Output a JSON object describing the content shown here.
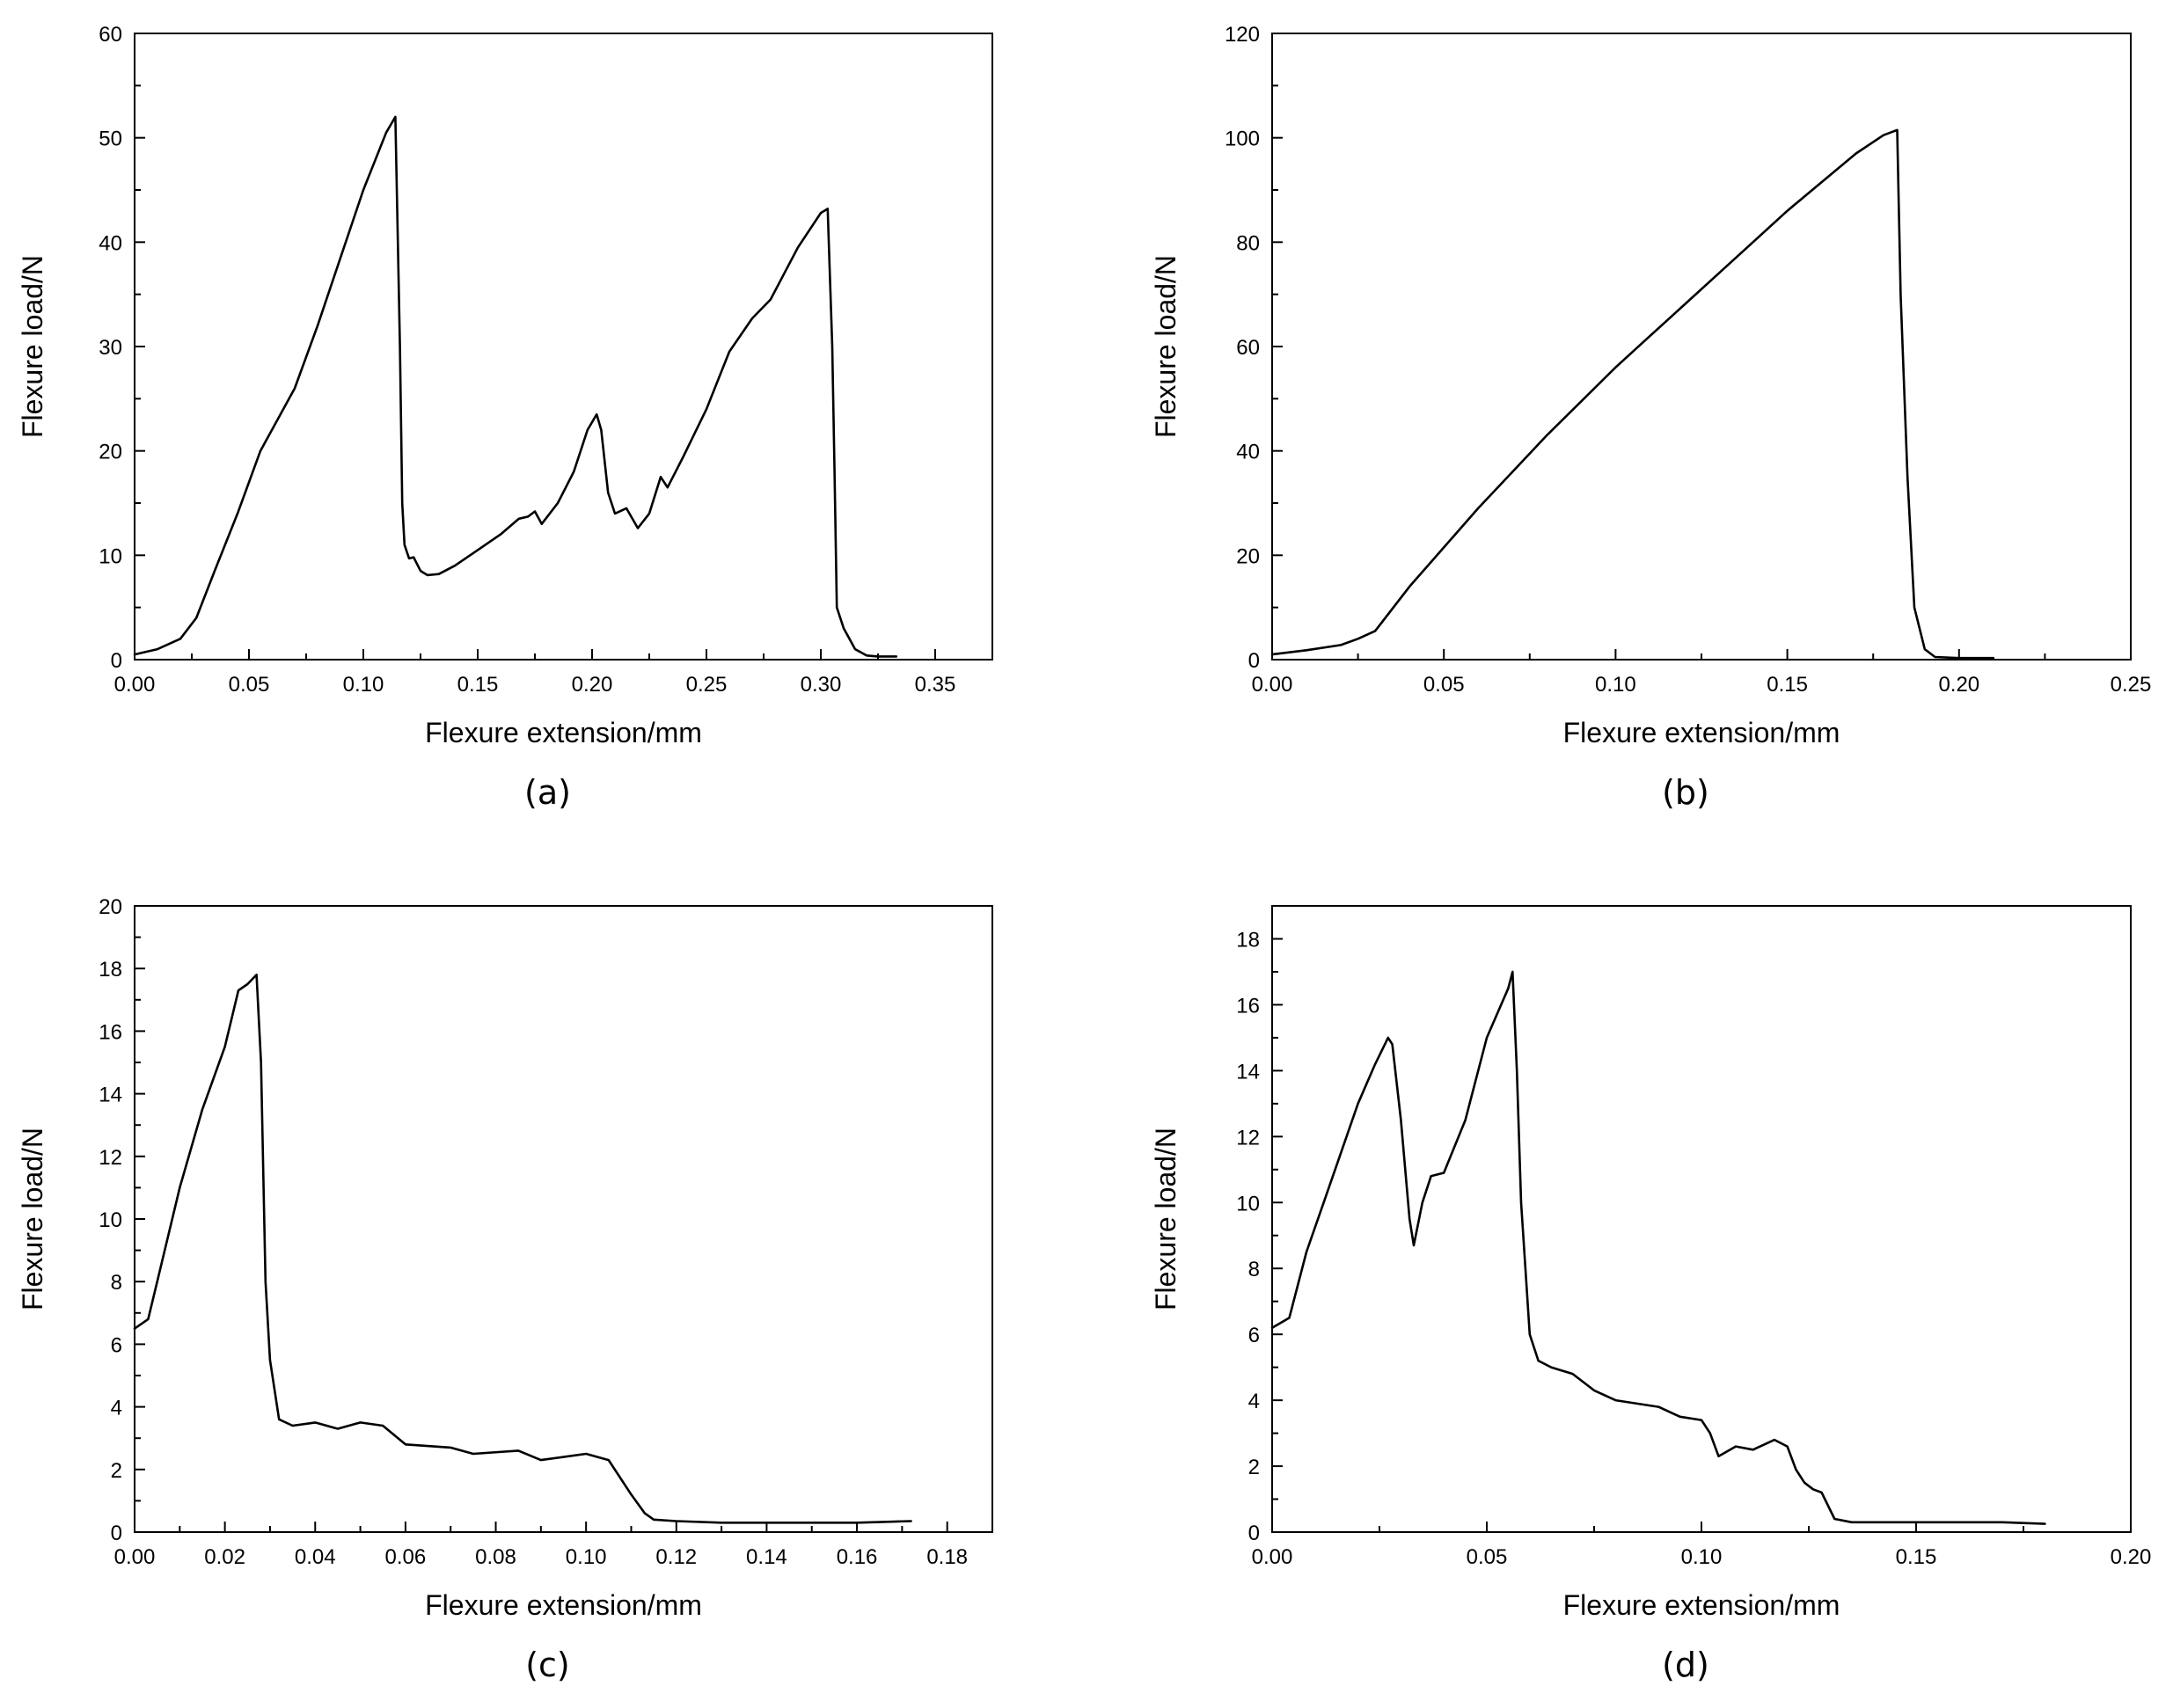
{
  "chart_data": [
    {
      "type": "line",
      "panel_label": "(a)",
      "xlabel": "Flexure extension/mm",
      "ylabel": "Flexure load/N",
      "xlim": [
        0,
        0.375
      ],
      "ylim": [
        0,
        60
      ],
      "x_ticks": [
        0,
        0.05,
        0.1,
        0.15,
        0.2,
        0.25,
        0.3,
        0.35
      ],
      "x_tick_labels": [
        "0.00",
        "0.05",
        "0.10",
        "0.15",
        "0.20",
        "0.25",
        "0.30",
        "0.35"
      ],
      "y_ticks": [
        0,
        10,
        20,
        30,
        40,
        50,
        60
      ],
      "y_tick_labels": [
        "0",
        "10",
        "20",
        "30",
        "40",
        "50",
        "60"
      ],
      "grid": false,
      "series": [
        {
          "name": "load",
          "x": [
            0,
            0.01,
            0.02,
            0.027,
            0.035,
            0.045,
            0.055,
            0.065,
            0.07,
            0.08,
            0.09,
            0.1,
            0.11,
            0.114,
            0.116,
            0.117,
            0.118,
            0.12,
            0.122,
            0.125,
            0.128,
            0.133,
            0.14,
            0.15,
            0.16,
            0.168,
            0.172,
            0.175,
            0.178,
            0.185,
            0.192,
            0.198,
            0.202,
            0.204,
            0.207,
            0.21,
            0.215,
            0.22,
            0.225,
            0.23,
            0.233,
            0.24,
            0.25,
            0.26,
            0.27,
            0.278,
            0.29,
            0.3,
            0.303,
            0.305,
            0.306,
            0.307,
            0.31,
            0.315,
            0.32,
            0.325,
            0.33,
            0.333
          ],
          "y": [
            0.5,
            1.0,
            2.0,
            4.0,
            8.5,
            14.0,
            20.0,
            24.0,
            26.0,
            32.0,
            38.5,
            45.0,
            50.5,
            52.0,
            30.0,
            15.0,
            11.0,
            9.7,
            9.8,
            8.5,
            8.1,
            8.2,
            9.0,
            10.5,
            12.0,
            13.5,
            13.7,
            14.2,
            13.0,
            15.0,
            18.0,
            22.0,
            23.5,
            22.0,
            16.0,
            14.0,
            14.5,
            12.6,
            14.0,
            17.5,
            16.5,
            19.5,
            24.0,
            29.5,
            32.7,
            34.5,
            39.5,
            42.8,
            43.2,
            30.0,
            18.0,
            5.0,
            3.0,
            1.0,
            0.4,
            0.3,
            0.3,
            0.3
          ]
        }
      ]
    },
    {
      "type": "line",
      "panel_label": "(b)",
      "xlabel": "Flexure extension/mm",
      "ylabel": "Flexure load/N",
      "xlim": [
        0,
        0.25
      ],
      "ylim": [
        0,
        120
      ],
      "x_ticks": [
        0,
        0.05,
        0.1,
        0.15,
        0.2,
        0.25
      ],
      "x_tick_labels": [
        "0.00",
        "0.05",
        "0.10",
        "0.15",
        "0.20",
        "0.25"
      ],
      "y_ticks": [
        0,
        20,
        40,
        60,
        80,
        100,
        120
      ],
      "y_tick_labels": [
        "0",
        "20",
        "40",
        "60",
        "80",
        "100",
        "120"
      ],
      "grid": false,
      "series": [
        {
          "name": "load",
          "x": [
            0,
            0.01,
            0.02,
            0.025,
            0.03,
            0.04,
            0.05,
            0.06,
            0.07,
            0.08,
            0.09,
            0.1,
            0.11,
            0.12,
            0.13,
            0.14,
            0.15,
            0.16,
            0.17,
            0.178,
            0.182,
            0.183,
            0.185,
            0.187,
            0.19,
            0.193,
            0.2,
            0.21
          ],
          "y": [
            1.0,
            1.8,
            2.8,
            4.0,
            5.5,
            14.0,
            21.5,
            29.0,
            36.0,
            43.0,
            49.5,
            56.0,
            62.0,
            68.0,
            74.0,
            80.0,
            86.0,
            91.5,
            97.0,
            100.5,
            101.5,
            70.0,
            35.0,
            10.0,
            2.0,
            0.5,
            0.3,
            0.3
          ]
        }
      ]
    },
    {
      "type": "line",
      "panel_label": "(c)",
      "xlabel": "Flexure extension/mm",
      "ylabel": "Flexure load/N",
      "xlim": [
        0,
        0.19
      ],
      "ylim": [
        0,
        20
      ],
      "x_ticks": [
        0,
        0.02,
        0.04,
        0.06,
        0.08,
        0.1,
        0.12,
        0.14,
        0.16,
        0.18
      ],
      "x_tick_labels": [
        "0.00",
        "0.02",
        "0.04",
        "0.06",
        "0.08",
        "0.10",
        "0.12",
        "0.14",
        "0.16",
        "0.18"
      ],
      "y_ticks": [
        0,
        2,
        4,
        6,
        8,
        10,
        12,
        14,
        16,
        18,
        20
      ],
      "y_tick_labels": [
        "0",
        "2",
        "4",
        "6",
        "8",
        "10",
        "12",
        "14",
        "16",
        "18",
        "20"
      ],
      "grid": false,
      "series": [
        {
          "name": "load",
          "x": [
            0,
            0.003,
            0.005,
            0.01,
            0.015,
            0.02,
            0.023,
            0.025,
            0.027,
            0.028,
            0.029,
            0.03,
            0.032,
            0.035,
            0.04,
            0.045,
            0.05,
            0.055,
            0.06,
            0.07,
            0.075,
            0.085,
            0.09,
            0.095,
            0.1,
            0.105,
            0.11,
            0.113,
            0.115,
            0.12,
            0.13,
            0.14,
            0.15,
            0.16,
            0.172
          ],
          "y": [
            6.5,
            6.8,
            8.0,
            11.0,
            13.5,
            15.5,
            17.3,
            17.5,
            17.8,
            15.0,
            8.0,
            5.5,
            3.6,
            3.4,
            3.5,
            3.3,
            3.5,
            3.4,
            2.8,
            2.7,
            2.5,
            2.6,
            2.3,
            2.4,
            2.5,
            2.3,
            1.2,
            0.6,
            0.4,
            0.35,
            0.3,
            0.3,
            0.3,
            0.3,
            0.35
          ]
        }
      ]
    },
    {
      "type": "line",
      "panel_label": "(d)",
      "xlabel": "Flexure extension/mm",
      "ylabel": "Flexure load/N",
      "xlim": [
        0,
        0.2
      ],
      "ylim": [
        0,
        19
      ],
      "x_ticks": [
        0,
        0.05,
        0.1,
        0.15,
        0.2
      ],
      "x_tick_labels": [
        "0.00",
        "0.05",
        "0.10",
        "0.15",
        "0.20"
      ],
      "y_ticks": [
        0,
        2,
        4,
        6,
        8,
        10,
        12,
        14,
        16,
        18
      ],
      "y_tick_labels": [
        "0",
        "2",
        "4",
        "6",
        "8",
        "10",
        "12",
        "14",
        "16",
        "18"
      ],
      "grid": false,
      "series": [
        {
          "name": "load",
          "x": [
            0,
            0.004,
            0.008,
            0.012,
            0.016,
            0.02,
            0.024,
            0.027,
            0.028,
            0.03,
            0.032,
            0.033,
            0.035,
            0.037,
            0.04,
            0.045,
            0.05,
            0.055,
            0.056,
            0.057,
            0.058,
            0.06,
            0.062,
            0.065,
            0.07,
            0.075,
            0.08,
            0.09,
            0.095,
            0.1,
            0.102,
            0.104,
            0.108,
            0.112,
            0.117,
            0.12,
            0.122,
            0.124,
            0.126,
            0.128,
            0.131,
            0.135,
            0.14,
            0.15,
            0.16,
            0.17,
            0.18
          ],
          "y": [
            6.2,
            6.5,
            8.5,
            10.0,
            11.5,
            13.0,
            14.2,
            15.0,
            14.8,
            12.5,
            9.5,
            8.7,
            10.0,
            10.8,
            10.9,
            12.5,
            15.0,
            16.5,
            17.0,
            14.0,
            10.0,
            6.0,
            5.2,
            5.0,
            4.8,
            4.3,
            4.0,
            3.8,
            3.5,
            3.4,
            3.0,
            2.3,
            2.6,
            2.5,
            2.8,
            2.6,
            1.9,
            1.5,
            1.3,
            1.2,
            0.4,
            0.3,
            0.3,
            0.3,
            0.3,
            0.3,
            0.25
          ]
        }
      ]
    }
  ]
}
